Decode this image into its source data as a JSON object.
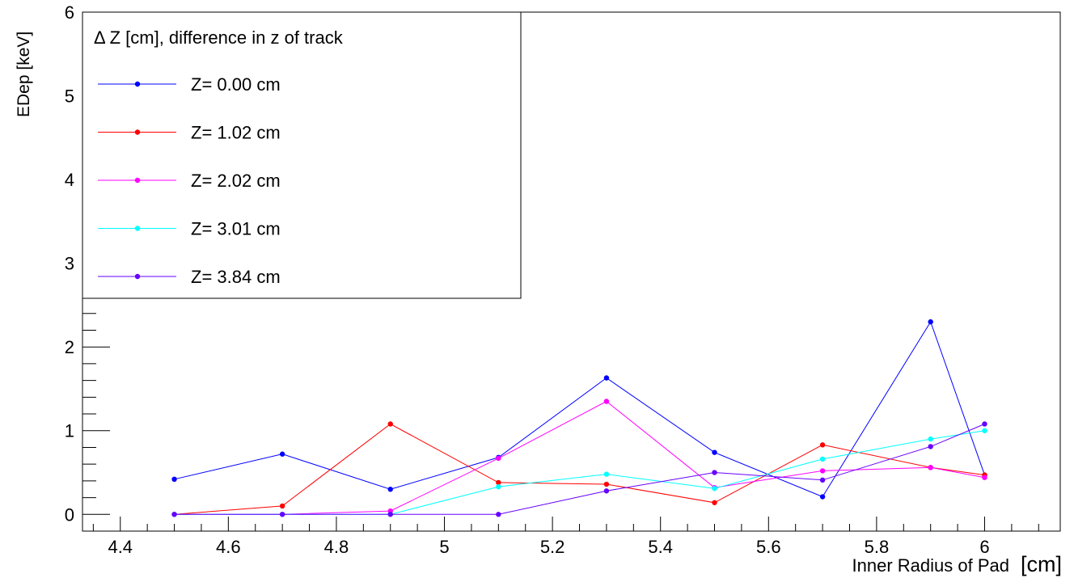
{
  "chart_data": {
    "type": "line",
    "title": "",
    "xlabel": "Inner Radius of Pad",
    "xunit": "[cm]",
    "ylabel": "EDep [keV]",
    "xlim": [
      4.33,
      6.14
    ],
    "ylim": [
      -0.2,
      6.0
    ],
    "x_ticks": [
      "4.4",
      "4.6",
      "4.8",
      "5",
      "5.2",
      "5.4",
      "5.6",
      "5.8",
      "6"
    ],
    "y_ticks": [
      "0",
      "1",
      "2",
      "3",
      "4",
      "5",
      "6"
    ],
    "grid": false,
    "legend_position": "top-left",
    "legend_header": "Δ Z [cm], difference in z of track",
    "x": [
      4.5,
      4.7,
      4.9,
      5.1,
      5.3,
      5.5,
      5.7,
      5.9,
      6.0
    ],
    "series": [
      {
        "name": "Z= 0.00 cm",
        "color": "#0000ff",
        "values": [
          0.42,
          0.72,
          0.3,
          0.68,
          1.63,
          0.74,
          0.21,
          2.3,
          0.47
        ]
      },
      {
        "name": "Z= 1.02 cm",
        "color": "#ff0000",
        "values": [
          0.0,
          0.1,
          1.08,
          0.38,
          0.36,
          0.14,
          0.83,
          0.56,
          0.47
        ]
      },
      {
        "name": "Z= 2.02 cm",
        "color": "#ff00ff",
        "values": [
          0.0,
          0.0,
          0.04,
          0.67,
          1.35,
          0.32,
          0.52,
          0.56,
          0.44
        ]
      },
      {
        "name": "Z= 3.01 cm",
        "color": "#00ffff",
        "values": [
          0.0,
          0.0,
          0.0,
          0.33,
          0.48,
          0.31,
          0.66,
          0.9,
          1.0
        ]
      },
      {
        "name": "Z= 3.84 cm",
        "color": "#6600ff",
        "values": [
          0.0,
          0.0,
          0.0,
          0.0,
          0.28,
          0.5,
          0.41,
          0.81,
          1.08
        ]
      }
    ]
  }
}
